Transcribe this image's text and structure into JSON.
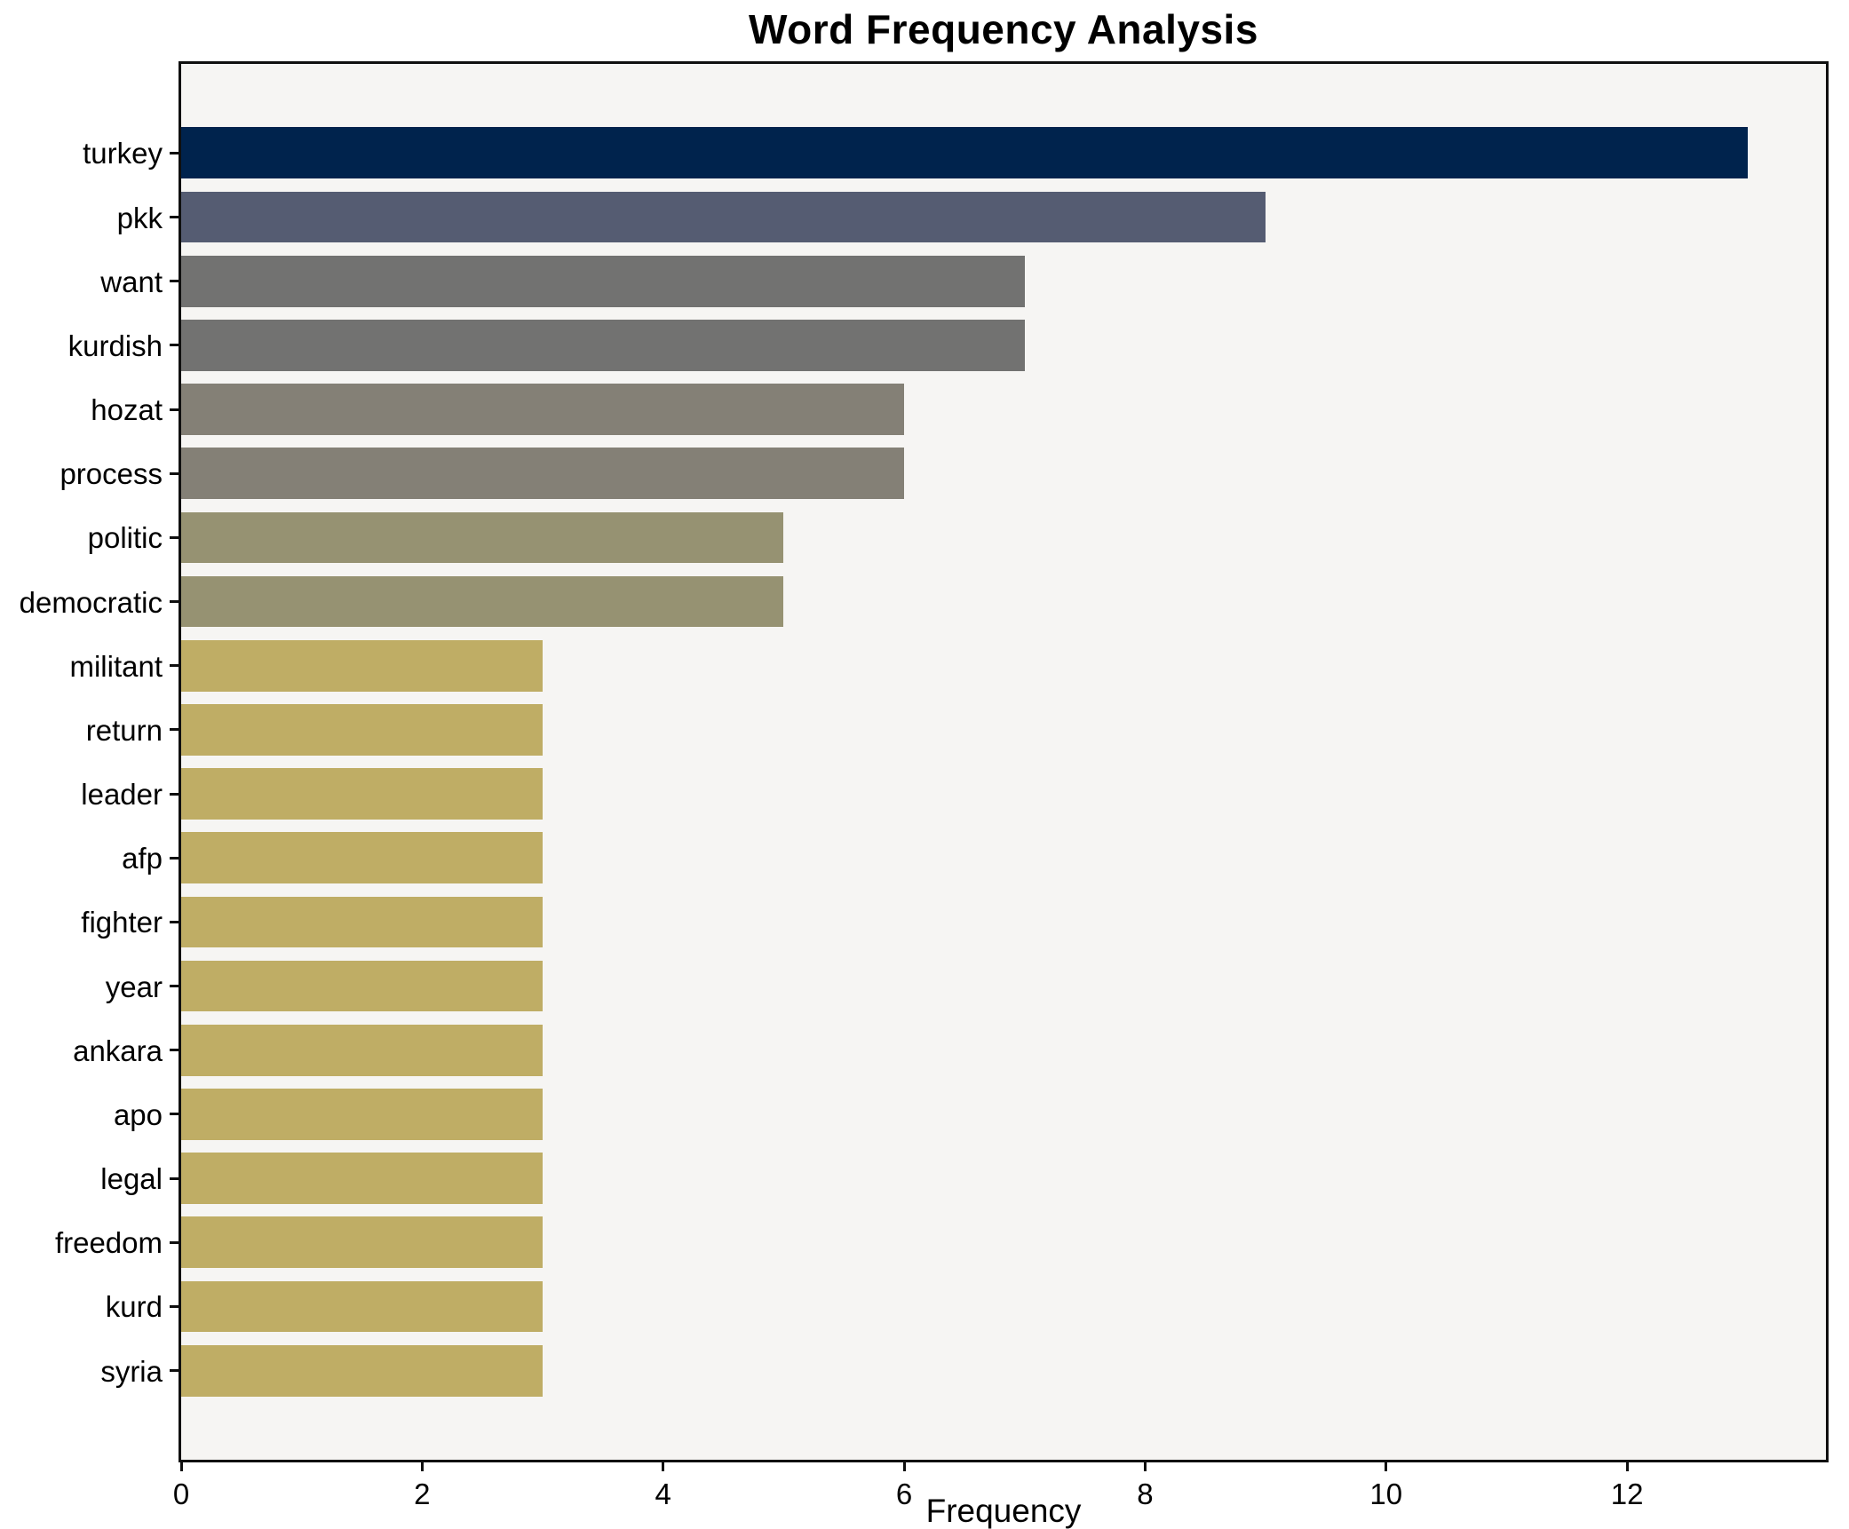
{
  "figure": {
    "background_color": "#ffffff",
    "plot_background_color": "#f6f5f3",
    "spine_color": "#0f0f0f",
    "text_color": "#000000"
  },
  "chart_data": {
    "type": "bar",
    "orientation": "horizontal",
    "title": "Word Frequency Analysis",
    "xlabel": "Frequency",
    "ylabel": "",
    "categories": [
      "turkey",
      "pkk",
      "want",
      "kurdish",
      "hozat",
      "process",
      "politic",
      "democratic",
      "militant",
      "return",
      "leader",
      "afp",
      "fighter",
      "year",
      "ankara",
      "apo",
      "legal",
      "freedom",
      "kurd",
      "syria"
    ],
    "values": [
      13,
      9,
      7,
      7,
      6,
      6,
      5,
      5,
      3,
      3,
      3,
      3,
      3,
      3,
      3,
      3,
      3,
      3,
      3,
      3
    ],
    "bar_colors": [
      "#00234d",
      "#555c72",
      "#727271",
      "#727271",
      "#848076",
      "#848076",
      "#969272",
      "#969272",
      "#bfad65",
      "#bfad65",
      "#bfad65",
      "#bfad65",
      "#bfad65",
      "#bfad65",
      "#bfad65",
      "#bfad65",
      "#bfad65",
      "#bfad65",
      "#bfad65",
      "#bfad65"
    ],
    "xticks": [
      0,
      2,
      4,
      6,
      8,
      10,
      12
    ],
    "xlim": [
      0,
      13.65
    ],
    "bar_rel_height": 0.8,
    "grid": false,
    "legend_position": "none"
  }
}
